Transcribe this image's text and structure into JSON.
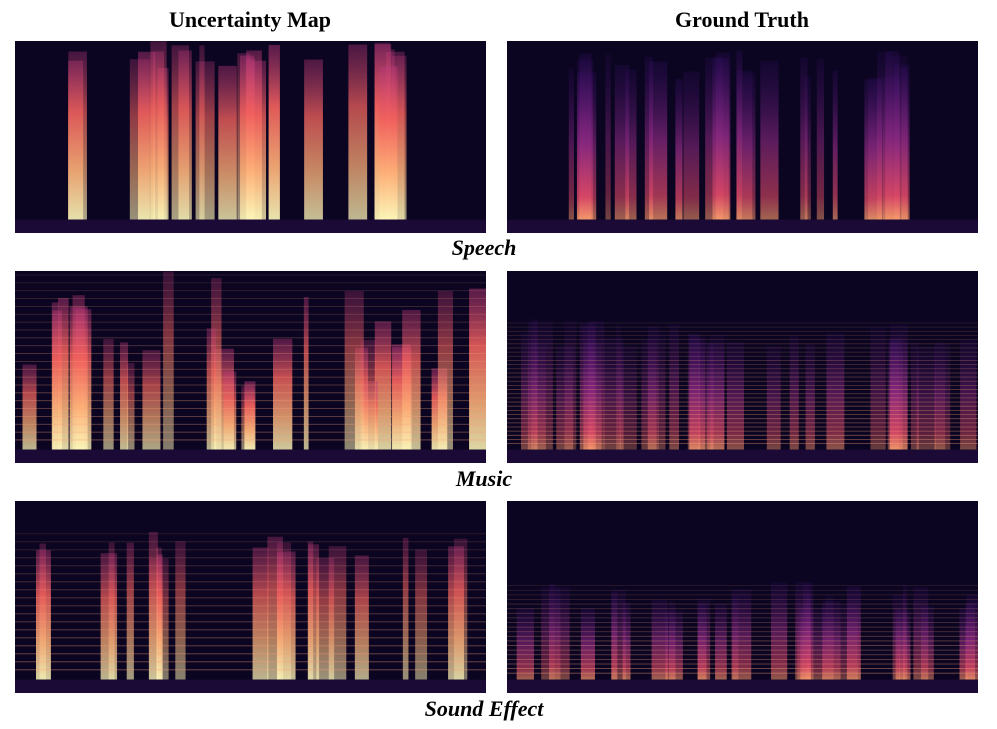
{
  "columns": [
    "Uncertainty Map",
    "Ground Truth"
  ],
  "rows": [
    "Speech",
    "Music",
    "Sound Effect"
  ]
}
